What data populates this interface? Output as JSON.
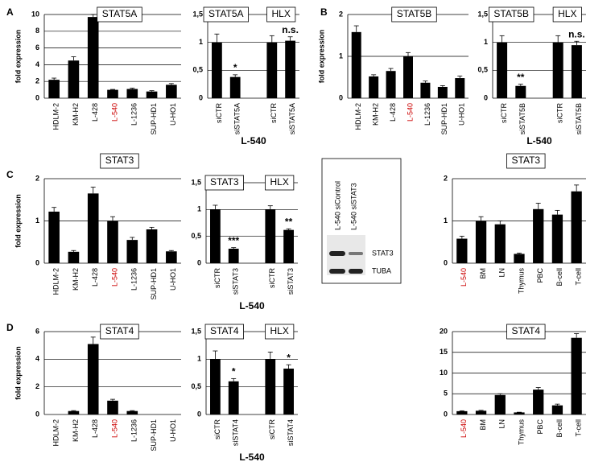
{
  "panels": [
    "A",
    "B",
    "C",
    "D"
  ],
  "blot": {
    "lanes": [
      "L-540 siControl",
      "L-540 siSTAT3"
    ],
    "bands": [
      "STAT3",
      "TUBA"
    ]
  },
  "chart_data": [
    {
      "type": "bar",
      "title": "STAT5A",
      "ylabel": "fold expression",
      "categories": [
        "HDLM-2",
        "KM-H2",
        "L-428",
        "L-540",
        "L-1236",
        "SUP-HD1",
        "U-HO1"
      ],
      "values": [
        2.2,
        4.5,
        9.7,
        1.0,
        1.1,
        0.8,
        1.6
      ],
      "errors": [
        0.2,
        0.45,
        0.3,
        0.05,
        0.1,
        0.1,
        0.15
      ],
      "ylim": [
        0,
        10
      ],
      "yticks": [
        0,
        2,
        4,
        6,
        8,
        10
      ],
      "grid": true,
      "color": "#000000",
      "highlight_index": 3,
      "highlight_color": "#cc0000"
    },
    {
      "type": "bar",
      "title": "STAT5A",
      "title2": "HLX",
      "xlabel": "L-540",
      "categories": [
        "siCTR",
        "siSTAT5A",
        null,
        "siCTR",
        "siSTAT5A"
      ],
      "values": [
        1.0,
        0.38,
        null,
        1.0,
        1.03
      ],
      "errors": [
        0.15,
        0.04,
        null,
        0.12,
        0.07
      ],
      "annotations": [
        null,
        "*",
        null,
        null,
        "n.s."
      ],
      "ylim": [
        0,
        1.5
      ],
      "yticks": [
        0,
        {
          "value": 0.5,
          "label": "0,5"
        },
        1,
        {
          "value": 1.5,
          "label": "1,5"
        }
      ],
      "grid": true,
      "color": "#000000"
    },
    {
      "type": "bar",
      "title": "STAT5B",
      "ylabel": "fold expression",
      "categories": [
        "HDLM-2",
        "KM-H2",
        "L-428",
        "L-540",
        "L-1236",
        "SUP-HD1",
        "U-HO1"
      ],
      "values": [
        1.58,
        0.52,
        0.65,
        1.0,
        0.37,
        0.27,
        0.48
      ],
      "errors": [
        0.15,
        0.04,
        0.06,
        0.09,
        0.04,
        0.03,
        0.05
      ],
      "ylim": [
        0,
        2
      ],
      "yticks": [
        0,
        1,
        2
      ],
      "grid": true,
      "color": "#000000",
      "highlight_index": 3,
      "highlight_color": "#cc0000"
    },
    {
      "type": "bar",
      "title": "STAT5B",
      "title2": "HLX",
      "xlabel": "L-540",
      "categories": [
        "siCTR",
        "siSTAT5B",
        null,
        "siCTR",
        "siSTAT5B"
      ],
      "values": [
        1.0,
        0.22,
        null,
        1.0,
        0.95
      ],
      "errors": [
        0.12,
        0.03,
        null,
        0.12,
        0.07
      ],
      "annotations": [
        null,
        "**",
        null,
        null,
        "n.s."
      ],
      "ylim": [
        0,
        1.5
      ],
      "yticks": [
        0,
        {
          "value": 0.5,
          "label": "0,5"
        },
        1,
        {
          "value": 1.5,
          "label": "1,5"
        }
      ],
      "grid": true,
      "color": "#000000"
    },
    {
      "type": "bar",
      "title": "STAT3",
      "ylabel": "fold expression",
      "categories": [
        "HDLM-2",
        "KM-H2",
        "L-428",
        "L-540",
        "L-1236",
        "SUP-HD1",
        "U-HO1"
      ],
      "values": [
        1.22,
        0.27,
        1.65,
        1.0,
        0.55,
        0.8,
        0.28
      ],
      "errors": [
        0.1,
        0.03,
        0.15,
        0.1,
        0.06,
        0.05,
        0.02
      ],
      "ylim": [
        0,
        2
      ],
      "yticks": [
        0,
        1,
        2
      ],
      "grid": true,
      "color": "#000000",
      "highlight_index": 3,
      "highlight_color": "#cc0000"
    },
    {
      "type": "bar",
      "title": "STAT3",
      "title2": "HLX",
      "xlabel": "L-540",
      "categories": [
        "siCTR",
        "siSTAT3",
        null,
        "siCTR",
        "siSTAT3"
      ],
      "values": [
        1.0,
        0.27,
        null,
        1.0,
        0.62
      ],
      "errors": [
        0.08,
        0.02,
        null,
        0.07,
        0.02
      ],
      "annotations": [
        null,
        "***",
        null,
        null,
        "**"
      ],
      "ylim": [
        0,
        1.5
      ],
      "yticks": [
        0,
        {
          "value": 0.5,
          "label": "0,5"
        },
        1,
        {
          "value": 1.5,
          "label": "1,5"
        }
      ],
      "grid": true,
      "color": "#000000"
    },
    {
      "type": "bar",
      "title": "STAT3",
      "categories": [
        "L-540",
        "BM",
        "LN",
        "Thymus",
        "PBC",
        "B-cell",
        "T-cell"
      ],
      "values": [
        0.58,
        1.0,
        0.92,
        0.22,
        1.28,
        1.15,
        1.7
      ],
      "errors": [
        0.06,
        0.1,
        0.08,
        0.02,
        0.14,
        0.1,
        0.15
      ],
      "ylim": [
        0,
        2
      ],
      "yticks": [
        0,
        1,
        2
      ],
      "grid": true,
      "color": "#000000",
      "highlight_index": 0,
      "highlight_color": "#cc0000"
    },
    {
      "type": "bar",
      "title": "STAT4",
      "ylabel": "fold expression",
      "categories": [
        "HDLM-2",
        "KM-H2",
        "L-428",
        "L-540",
        "L-1236",
        "SUP-HD1",
        "U-HO1"
      ],
      "values": [
        0,
        0.25,
        5.1,
        1.0,
        0.25,
        0,
        0
      ],
      "errors": [
        null,
        0.03,
        0.5,
        0.1,
        0.03,
        null,
        null
      ],
      "ylim": [
        0,
        6
      ],
      "yticks": [
        0,
        2,
        4,
        6
      ],
      "grid": true,
      "color": "#000000",
      "highlight_index": 3,
      "highlight_color": "#cc0000"
    },
    {
      "type": "bar",
      "title": "STAT4",
      "title2": "HLX",
      "xlabel": "L-540",
      "categories": [
        "siCTR",
        "siSTAT4",
        null,
        "siCTR",
        "siSTAT4"
      ],
      "values": [
        1.0,
        0.6,
        null,
        1.0,
        0.83
      ],
      "errors": [
        0.15,
        0.05,
        null,
        0.13,
        0.07
      ],
      "annotations": [
        null,
        "*",
        null,
        null,
        "*"
      ],
      "ylim": [
        0,
        1.5
      ],
      "yticks": [
        0,
        {
          "value": 0.5,
          "label": "0,5"
        },
        1,
        {
          "value": 1.5,
          "label": "1,5"
        }
      ],
      "grid": true,
      "color": "#000000"
    },
    {
      "type": "bar",
      "title": "STAT4",
      "categories": [
        "L-540",
        "BM",
        "LN",
        "Thymus",
        "PBC",
        "B-cell",
        "T-cell"
      ],
      "values": [
        0.8,
        0.9,
        4.7,
        0.5,
        6.0,
        2.2,
        18.5
      ],
      "errors": [
        0.1,
        0.1,
        0.3,
        0.05,
        0.5,
        0.3,
        1.0
      ],
      "ylim": [
        0,
        20
      ],
      "yticks": [
        0,
        5,
        10,
        15,
        20
      ],
      "grid": true,
      "color": "#000000",
      "highlight_index": 0,
      "highlight_color": "#cc0000"
    }
  ]
}
